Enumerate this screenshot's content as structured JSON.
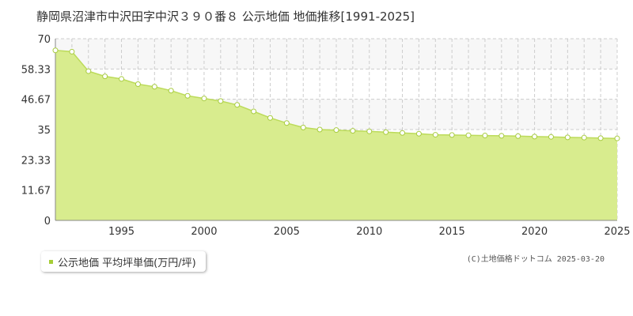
{
  "title": "静岡県沼津市中沢田字中沢３９０番８ 公示地価 地価推移[1991-2025]",
  "legend": {
    "label": "公示地価 平均坪単価(万円/坪)"
  },
  "credit": "(C)土地価格ドットコム 2025-03-20",
  "colors": {
    "fill": "#d8ec8e",
    "line": "#bcdb5a",
    "marker_stroke": "#a8cc40",
    "band": "#f7f7f7",
    "grid": "#cccccc"
  },
  "chart_data": {
    "type": "area",
    "x": [
      1991,
      1992,
      1993,
      1994,
      1995,
      1996,
      1997,
      1998,
      1999,
      2000,
      2001,
      2002,
      2003,
      2004,
      2005,
      2006,
      2007,
      2008,
      2009,
      2010,
      2011,
      2012,
      2013,
      2014,
      2015,
      2016,
      2017,
      2018,
      2019,
      2020,
      2021,
      2022,
      2023,
      2024,
      2025
    ],
    "series": [
      {
        "name": "公示地価 平均坪単価(万円/坪)",
        "values": [
          65.5,
          65.0,
          57.5,
          55.5,
          54.5,
          52.5,
          51.5,
          50.0,
          48.0,
          47.0,
          46.0,
          44.5,
          42.0,
          39.5,
          37.5,
          35.8,
          35.0,
          34.8,
          34.5,
          34.3,
          34.0,
          33.7,
          33.4,
          33.0,
          32.9,
          32.8,
          32.7,
          32.6,
          32.5,
          32.3,
          32.2,
          32.0,
          31.9,
          31.7,
          31.6
        ]
      }
    ],
    "xlim": [
      1991,
      2025
    ],
    "ylim": [
      0,
      70
    ],
    "yticks": [
      0,
      11.67,
      23.33,
      35,
      46.67,
      58.33,
      70
    ],
    "ytick_labels": [
      "0",
      "11.67",
      "23.33",
      "35",
      "46.67",
      "58.33",
      "70"
    ],
    "xticks": [
      1995,
      2000,
      2005,
      2010,
      2015,
      2020,
      2025
    ],
    "xtick_labels": [
      "1995",
      "2000",
      "2005",
      "2010",
      "2015",
      "2020",
      "2025"
    ],
    "grid": true,
    "legend_position": "bottom-left"
  }
}
